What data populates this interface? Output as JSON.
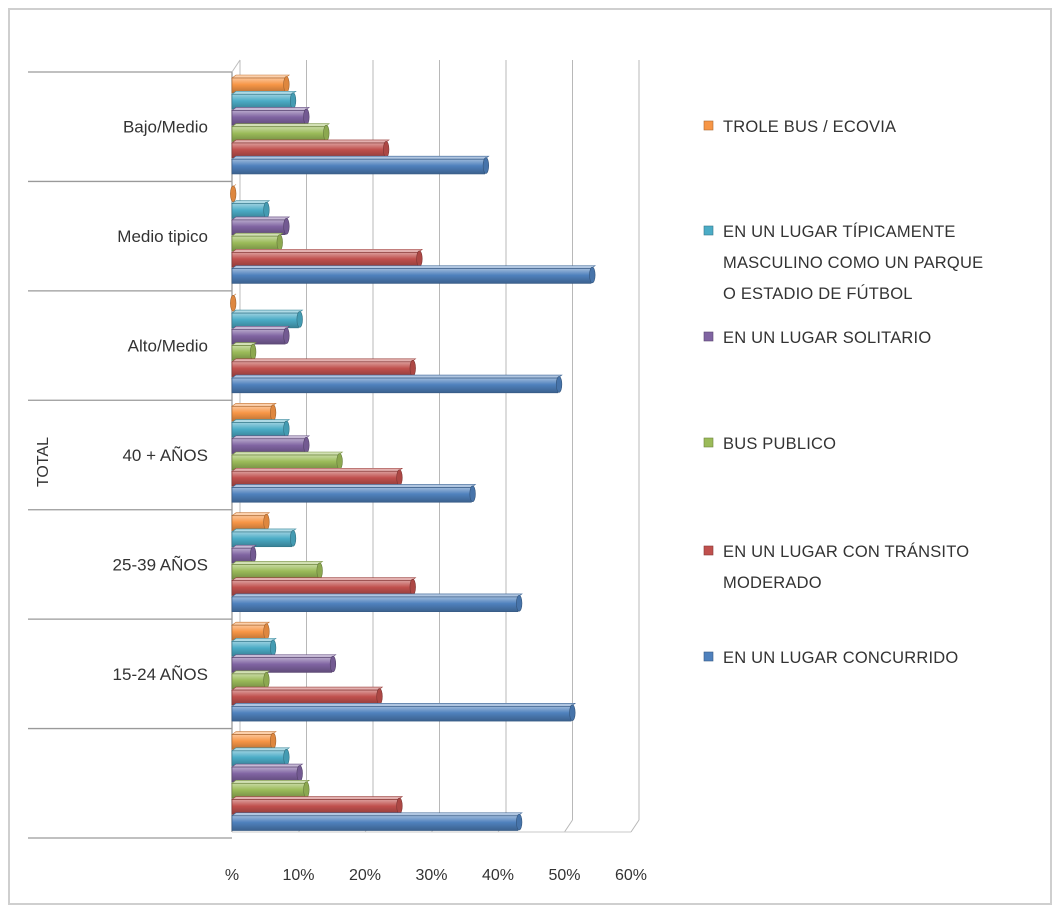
{
  "chart_data": {
    "type": "bar",
    "orientation": "horizontal",
    "style": "3d-clustered-bar",
    "categories": [
      "",
      "15-24 AÑOS",
      "25-39 AÑOS",
      "40 + AÑOS",
      "Alto/Medio",
      "Medio tipico",
      "Bajo/Medio"
    ],
    "series": [
      {
        "name": "EN UN LUGAR CONCURRIDO",
        "color": "#4F81BD",
        "values": [
          43,
          51,
          43,
          36,
          49,
          54,
          38
        ]
      },
      {
        "name": "EN UN LUGAR CON TRÁNSITO MODERADO",
        "color": "#C0504D",
        "values": [
          25,
          22,
          27,
          25,
          27,
          28,
          23
        ]
      },
      {
        "name": "BUS PUBLICO",
        "color": "#9BBB59",
        "values": [
          11,
          5,
          13,
          16,
          3,
          7,
          14
        ]
      },
      {
        "name": "EN UN LUGAR SOLITARIO",
        "color": "#8064A2",
        "values": [
          10,
          15,
          3,
          11,
          8,
          8,
          11
        ]
      },
      {
        "name": "EN UN LUGAR TÍPICAMENTE MASCULINO COMO UN PARQUE O ESTADIO DE FÚTBOL",
        "color": "#4BACC6",
        "values": [
          8,
          6,
          9,
          8,
          10,
          5,
          9
        ]
      },
      {
        "name": "TROLE BUS / ECOVIA",
        "color": "#F79646",
        "values": [
          6,
          5,
          5,
          6,
          0,
          0,
          8
        ]
      }
    ],
    "legend_order": [
      "TROLE BUS / ECOVIA",
      "EN UN LUGAR TÍPICAMENTE MASCULINO COMO UN PARQUE O ESTADIO DE FÚTBOL",
      "EN UN LUGAR SOLITARIO",
      "BUS PUBLICO",
      "EN UN LUGAR CON TRÁNSITO MODERADO",
      "EN UN LUGAR CONCURRIDO"
    ],
    "legend_lines": [
      [
        "TROLE BUS / ECOVIA"
      ],
      [
        "EN UN LUGAR TÍPICAMENTE",
        "MASCULINO COMO UN PARQUE",
        "O ESTADIO DE FÚTBOL"
      ],
      [
        "EN UN LUGAR SOLITARIO"
      ],
      [
        "BUS PUBLICO"
      ],
      [
        "EN UN LUGAR CON TRÁNSITO",
        "MODERADO"
      ],
      [
        "EN UN LUGAR CONCURRIDO"
      ]
    ],
    "group_label": "TOTAL",
    "x_ticks": [
      "%",
      "10%",
      "20%",
      "30%",
      "40%",
      "50%",
      "60%"
    ],
    "xlim": [
      0,
      60
    ],
    "grid": true,
    "legend_position": "right"
  }
}
